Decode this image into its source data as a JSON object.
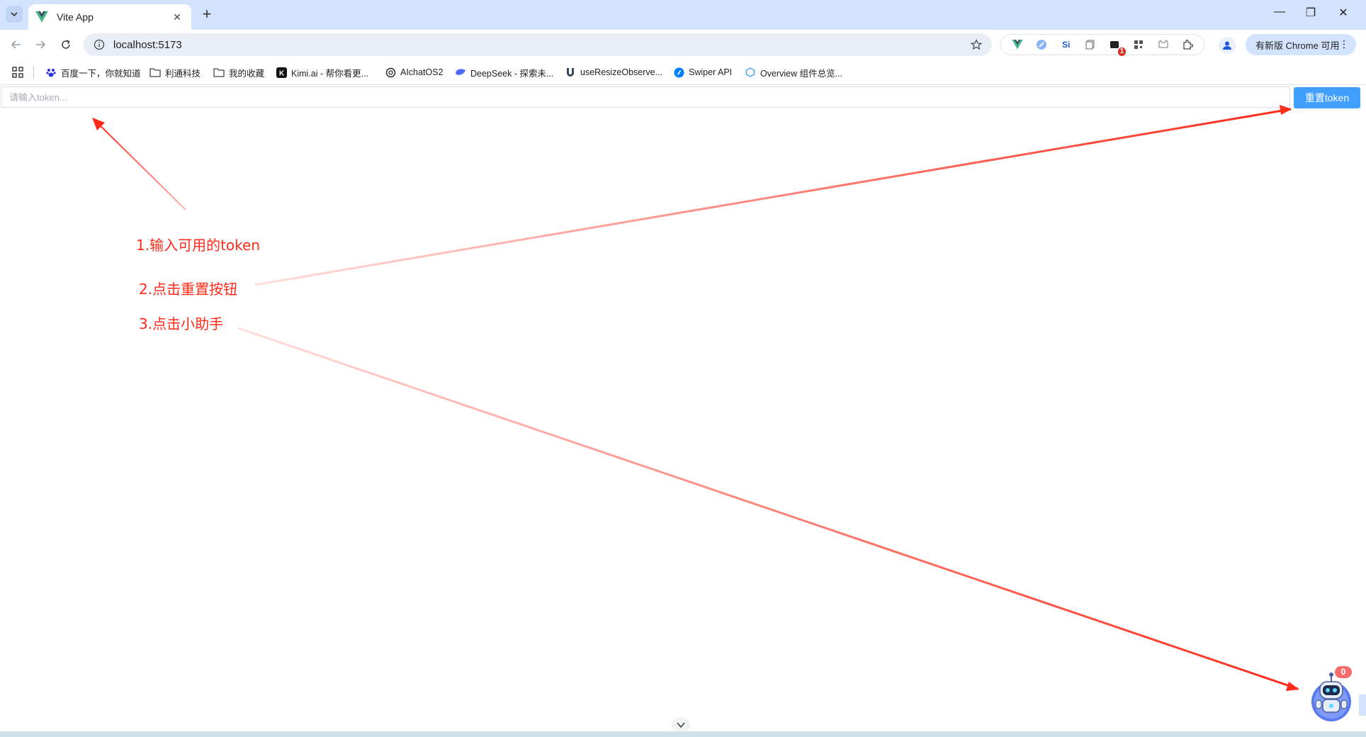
{
  "browser": {
    "tab_title": "Vite App",
    "new_tab_label": "+",
    "url": "localhost:5173",
    "update_chip": "有新版 Chrome 可用",
    "extensions": [
      {
        "name": "vue-devtools-icon",
        "label": "V"
      },
      {
        "name": "translate-icon",
        "label": "⊘"
      },
      {
        "name": "si-icon",
        "label": "Si"
      },
      {
        "name": "copy-icon",
        "label": "❐"
      },
      {
        "name": "notification-icon",
        "label": "■",
        "badge": "1"
      },
      {
        "name": "qr-icon",
        "label": "▦"
      },
      {
        "name": "cat-icon",
        "label": "☺"
      },
      {
        "name": "puzzle-icon",
        "label": "⧉"
      }
    ],
    "bookmarks": [
      {
        "label": "百度一下，你就知道",
        "icon": "baidu-icon"
      },
      {
        "label": "利通科技",
        "icon": "folder-icon"
      },
      {
        "label": "我的收藏",
        "icon": "folder-icon"
      },
      {
        "label": "Kimi.ai - 帮你看更...",
        "icon": "kimi-icon"
      },
      {
        "label": "AIchatOS2",
        "icon": "openai-icon"
      },
      {
        "label": "DeepSeek - 探索未...",
        "icon": "deepseek-icon"
      },
      {
        "label": "useResizeObserve...",
        "icon": "vueuse-icon"
      },
      {
        "label": "Swiper API",
        "icon": "swiper-icon"
      },
      {
        "label": "Overview 组件总览...",
        "icon": "element-icon"
      }
    ]
  },
  "page": {
    "token_placeholder": "请输入token...",
    "reset_button": "重置token",
    "annotations": {
      "step1": "1.输入可用的token",
      "step2": "2.点击重置按钮",
      "step3": "3.点击小助手"
    },
    "assistant_badge": "0"
  },
  "colors": {
    "primary": "#409eff",
    "annotation_red": "#ff2a1a",
    "badge_red": "#f56c6c",
    "tabstrip": "#d3e3fd"
  }
}
